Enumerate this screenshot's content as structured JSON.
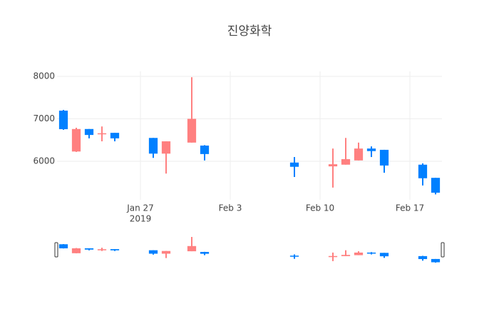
{
  "chart_data": {
    "type": "candlestick",
    "title": "진양화학",
    "x": [
      "2019-01-21",
      "2019-01-22",
      "2019-01-23",
      "2019-01-24",
      "2019-01-25",
      "2019-01-28",
      "2019-01-29",
      "2019-01-31",
      "2019-02-01",
      "2019-02-08",
      "2019-02-11",
      "2019-02-12",
      "2019-02-13",
      "2019-02-14",
      "2019-02-15",
      "2019-02-18",
      "2019-02-19"
    ],
    "open": [
      7193,
      6230,
      6760,
      6640,
      6670,
      6550,
      6180,
      6440,
      6370,
      5970,
      5880,
      5920,
      6020,
      6300,
      6270,
      5920,
      5610
    ],
    "high": [
      7210,
      6790,
      6760,
      6820,
      6670,
      6550,
      6470,
      7980,
      6380,
      6100,
      6300,
      6550,
      6440,
      6350,
      6270,
      5950,
      5610
    ],
    "low": [
      6740,
      6220,
      6540,
      6470,
      6470,
      6080,
      5710,
      6440,
      6020,
      5630,
      5380,
      5920,
      6020,
      6100,
      5730,
      5430,
      5220
    ],
    "close": [
      6756,
      6760,
      6620,
      6660,
      6540,
      6180,
      6470,
      7000,
      6170,
      5870,
      5930,
      6050,
      6300,
      6240,
      5900,
      5600,
      5260
    ],
    "increasing_color": "#ff8080",
    "decreasing_color": "#0080ff",
    "xlim": [
      "2019-01-20T12:00",
      "2019-02-19T12:00"
    ],
    "xticks": [
      {
        "value": "2019-01-27",
        "label": "Jan 27"
      },
      {
        "value": "2019-02-03",
        "label": "Feb 3"
      },
      {
        "value": "2019-02-10",
        "label": "Feb 10"
      },
      {
        "value": "2019-02-17",
        "label": "Feb 17"
      }
    ],
    "xtick_year": "2019",
    "ylim": [
      5092,
      8118
    ],
    "yticks": [
      6000,
      7000,
      8000
    ],
    "grid": true,
    "rangeslider": true
  }
}
